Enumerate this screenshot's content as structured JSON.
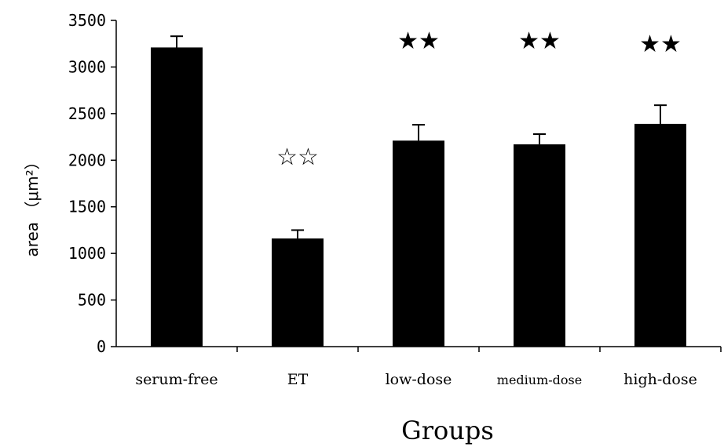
{
  "chart_data": {
    "type": "bar",
    "categories": [
      "serum-free",
      "ET",
      "low-dose",
      "medium-dose",
      "high-dose"
    ],
    "values": [
      3210,
      1160,
      2210,
      2170,
      2390
    ],
    "errors": [
      120,
      90,
      170,
      110,
      200
    ],
    "annotations": [
      "",
      "☆☆",
      "★★",
      "★★",
      "★★"
    ],
    "xlabel": "Groups",
    "ylabel": "area （μm²）",
    "ylim": [
      0,
      3500
    ],
    "yticks": [
      0,
      500,
      1000,
      1500,
      2000,
      2500,
      3000,
      3500
    ],
    "bar_color": "#000000",
    "grid": false
  }
}
